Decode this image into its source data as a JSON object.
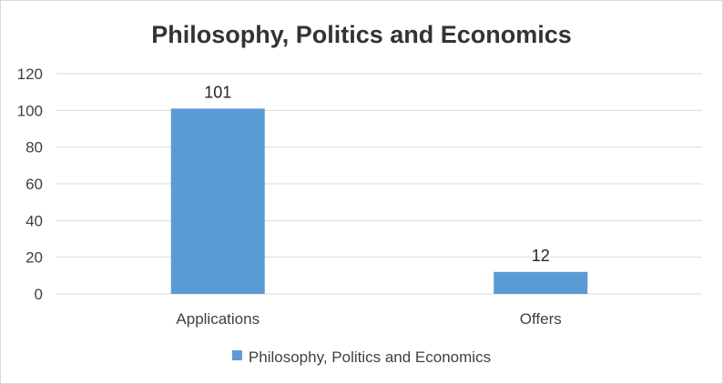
{
  "chart_data": {
    "type": "bar",
    "title": "Philosophy, Politics and Economics",
    "categories": [
      "Applications",
      "Offers"
    ],
    "series": [
      {
        "name": "Philosophy, Politics and Economics",
        "values": [
          101,
          12
        ],
        "color": "#5b9bd5"
      }
    ],
    "ylim": [
      0,
      120
    ],
    "yticks": [
      0,
      20,
      40,
      60,
      80,
      100,
      120
    ],
    "grid": true,
    "data_labels": true,
    "legend_position": "bottom"
  }
}
